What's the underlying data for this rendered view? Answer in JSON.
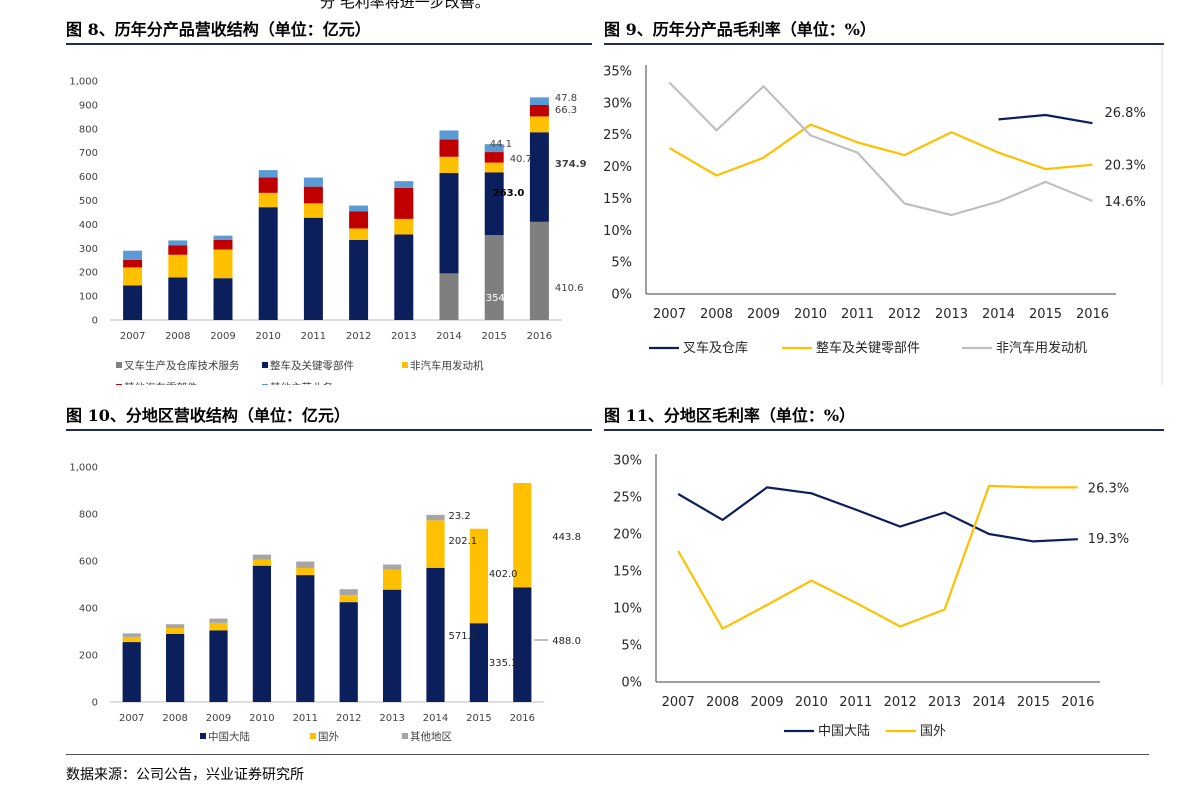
{
  "top_fragment": "分 毛利率将进一步改善。",
  "source_note": "数据来源：公司公告，兴业证券研究所",
  "colors": {
    "navy": "#0b1f5c",
    "gold": "#ffc000",
    "gray": "#7f7f7f",
    "red": "#c00000",
    "blue": "#5b9bd5",
    "lightgray": "#bfbfbf",
    "lightgrayband": "#a6a6a6"
  },
  "chart_data": [
    {
      "id": "fig8",
      "title": "图 8、历年分产品营收结构（单位：亿元）",
      "type": "bar",
      "stacked": true,
      "categories": [
        "2007",
        "2008",
        "2009",
        "2010",
        "2011",
        "2012",
        "2013",
        "2014",
        "2015",
        "2016"
      ],
      "y_ticks": [
        "0",
        "100",
        "200",
        "300",
        "400",
        "500",
        "600",
        "700",
        "800",
        "900",
        "1,000"
      ],
      "ylim": [
        0,
        1000
      ],
      "series": [
        {
          "name": "叉车生产及仓库技术服务",
          "color": "#7f7f7f",
          "values": [
            0,
            0,
            0,
            0,
            0,
            0,
            0,
            195,
            354.9,
            410.6
          ]
        },
        {
          "name": "整车及关键零部件",
          "color": "#0b1f5c",
          "values": [
            145,
            178,
            175,
            472,
            428,
            335,
            358,
            420,
            263.0,
            374.9
          ]
        },
        {
          "name": "非汽车用发动机",
          "color": "#ffc000",
          "values": [
            75,
            95,
            120,
            60,
            60,
            48,
            65,
            68,
            40.7,
            66.3
          ]
        },
        {
          "name": "其他汽车零部件",
          "color": "#c00000",
          "values": [
            32,
            40,
            40,
            65,
            70,
            72,
            130,
            72,
            44.1,
            47.8
          ]
        },
        {
          "name": "其他主营业务",
          "color": "#5b9bd5",
          "values": [
            38,
            20,
            18,
            30,
            38,
            24,
            28,
            38,
            33,
            32
          ]
        }
      ],
      "data_labels": [
        {
          "category": "2015",
          "series": 0,
          "text": "354.9"
        },
        {
          "category": "2015",
          "series": 1,
          "text": "263.0"
        },
        {
          "category": "2015",
          "series": 2,
          "text": "40.7"
        },
        {
          "category": "2015",
          "series": 3,
          "text": "44.1"
        },
        {
          "category": "2016",
          "series": 0,
          "text": "410.6"
        },
        {
          "category": "2016",
          "series": 1,
          "text": "374.9"
        },
        {
          "category": "2016",
          "series": 2,
          "text": "66.3"
        },
        {
          "category": "2016",
          "series": 3,
          "text": "47.8"
        }
      ],
      "legend": "bottom"
    },
    {
      "id": "fig9",
      "title": "图 9、历年分产品毛利率（单位：%）",
      "type": "line",
      "categories": [
        "2007",
        "2008",
        "2009",
        "2010",
        "2011",
        "2012",
        "2013",
        "2014",
        "2015",
        "2016"
      ],
      "y_ticks": [
        "0%",
        "5%",
        "10%",
        "15%",
        "20%",
        "25%",
        "30%",
        "35%"
      ],
      "ylim": [
        0,
        35
      ],
      "series": [
        {
          "name": "叉车及仓库",
          "color": "#0b1f5c",
          "values": [
            null,
            null,
            null,
            null,
            null,
            null,
            null,
            27.4,
            28.1,
            26.8
          ],
          "end_label": "26.8%"
        },
        {
          "name": "整车及关键零部件",
          "color": "#ffc000",
          "values": [
            22.9,
            18.6,
            21.4,
            26.6,
            23.8,
            21.8,
            25.4,
            22.2,
            19.6,
            20.3
          ],
          "end_label": "20.3%"
        },
        {
          "name": "非汽车用发动机",
          "color": "#bfbfbf",
          "values": [
            33.2,
            25.7,
            32.6,
            24.9,
            22.2,
            14.2,
            12.4,
            14.5,
            17.6,
            14.6
          ],
          "end_label": "14.6%"
        }
      ],
      "legend": "bottom"
    },
    {
      "id": "fig10",
      "title": "图 10、分地区营收结构（单位：亿元）",
      "type": "bar",
      "stacked": true,
      "categories": [
        "2007",
        "2008",
        "2009",
        "2010",
        "2011",
        "2012",
        "2013",
        "2014",
        "2015",
        "2016"
      ],
      "y_ticks": [
        "0",
        "200",
        "400",
        "600",
        "800",
        "1,000"
      ],
      "ylim": [
        0,
        1000
      ],
      "series": [
        {
          "name": "中国大陆",
          "color": "#0b1f5c",
          "values": [
            255,
            290,
            305,
            580,
            540,
            425,
            478,
            571.1,
            335.3,
            488.0
          ]
        },
        {
          "name": "国外",
          "color": "#ffc000",
          "values": [
            22,
            25,
            32,
            25,
            30,
            30,
            85,
            202.1,
            402.0,
            443.8
          ]
        },
        {
          "name": "其他地区",
          "color": "#a6a6a6",
          "values": [
            15,
            16,
            18,
            22,
            28,
            25,
            22,
            23.2,
            0,
            0
          ]
        }
      ],
      "data_labels": [
        {
          "category": "2014",
          "series": 0,
          "text": "571.1"
        },
        {
          "category": "2014",
          "series": 1,
          "text": "202.1"
        },
        {
          "category": "2014",
          "series": 2,
          "text": "23.2"
        },
        {
          "category": "2015",
          "series": 0,
          "text": "335.3"
        },
        {
          "category": "2015",
          "series": 1,
          "text": "402.0"
        },
        {
          "category": "2016",
          "series": 0,
          "text": "488.0"
        },
        {
          "category": "2016",
          "series": 1,
          "text": "443.8"
        }
      ],
      "legend": "bottom"
    },
    {
      "id": "fig11",
      "title": "图 11、分地区毛利率（单位：%）",
      "type": "line",
      "categories": [
        "2007",
        "2008",
        "2009",
        "2010",
        "2011",
        "2012",
        "2013",
        "2014",
        "2015",
        "2016"
      ],
      "y_ticks": [
        "0%",
        "5%",
        "10%",
        "15%",
        "20%",
        "25%",
        "30%"
      ],
      "ylim": [
        0,
        30
      ],
      "series": [
        {
          "name": "中国大陆",
          "color": "#0b1f5c",
          "values": [
            25.4,
            21.9,
            26.3,
            25.5,
            23.3,
            21.0,
            22.9,
            20.0,
            19.0,
            19.3
          ],
          "end_label": "19.3%"
        },
        {
          "name": "国外",
          "color": "#ffc000",
          "values": [
            17.7,
            7.2,
            10.4,
            13.7,
            10.7,
            7.5,
            9.8,
            26.5,
            26.3,
            26.3
          ],
          "end_label": "26.3%"
        }
      ],
      "legend": "bottom"
    }
  ]
}
